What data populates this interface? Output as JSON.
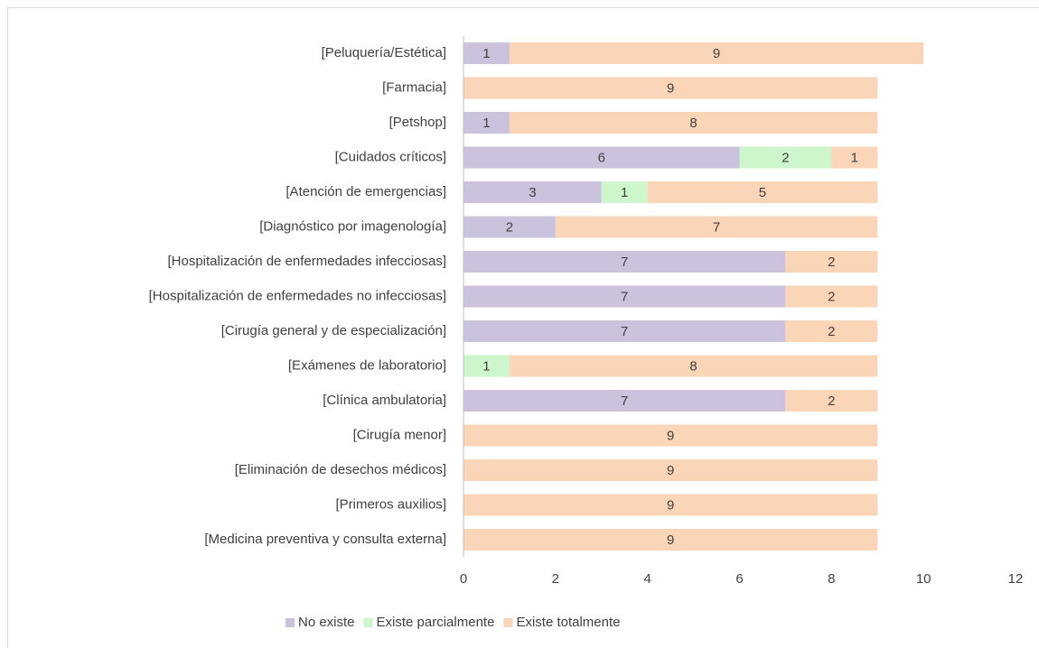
{
  "chart_data": {
    "type": "stacked_barh",
    "categories": [
      "[Peluquería/Estética]",
      "[Farmacia]",
      "[Petshop]",
      "[Cuidados críticos]",
      "[Atención de emergencias]",
      "[Diagnóstico por imagenología]",
      "[Hospitalización de enfermedades infecciosas]",
      "[Hospitalización de enfermedades no infecciosas]",
      "[Cirugía general y de especialización]",
      "[Exámenes de laboratorio]",
      "[Clínica ambulatoria]",
      "[Cirugía menor]",
      "[Eliminación de desechos médicos]",
      "[Primeros auxilios]",
      "[Medicina preventiva y consulta externa]"
    ],
    "series": [
      {
        "name": "No existe",
        "color": "#cbc3de",
        "values": [
          1,
          null,
          1,
          6,
          3,
          2,
          7,
          7,
          7,
          null,
          7,
          null,
          null,
          null,
          null
        ]
      },
      {
        "name": "Existe parcialmente",
        "color": "#cdf6cd",
        "values": [
          null,
          null,
          null,
          2,
          1,
          null,
          null,
          null,
          null,
          1,
          null,
          null,
          null,
          null,
          null
        ]
      },
      {
        "name": "Existe totalmente",
        "color": "#fbd5b7",
        "values": [
          9,
          9,
          8,
          1,
          5,
          7,
          2,
          2,
          2,
          8,
          2,
          9,
          9,
          9,
          9
        ]
      }
    ],
    "xlim": [
      0,
      12
    ],
    "xticks": [
      0,
      2,
      4,
      6,
      8,
      10,
      12
    ],
    "grid": false,
    "legend": "bottom"
  }
}
